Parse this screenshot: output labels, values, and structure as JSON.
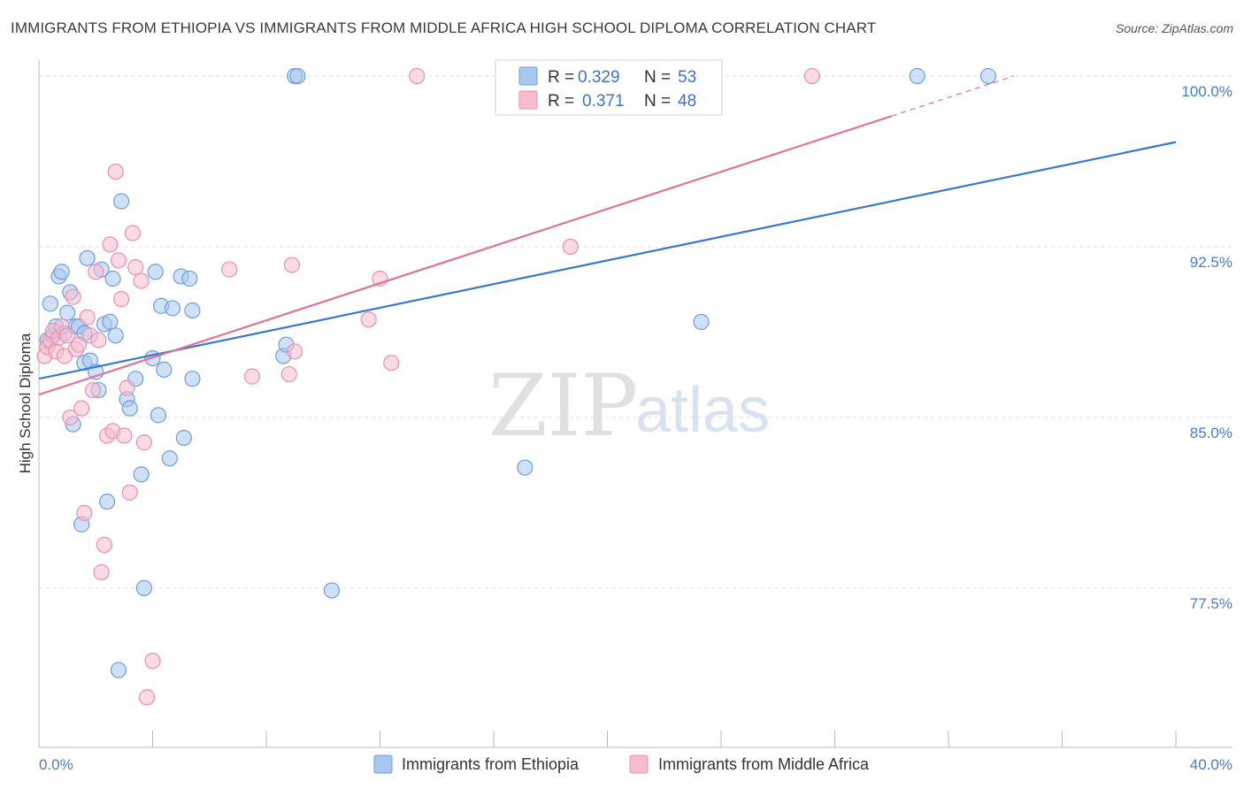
{
  "header": {
    "title": "IMMIGRANTS FROM ETHIOPIA VS IMMIGRANTS FROM MIDDLE AFRICA HIGH SCHOOL DIPLOMA CORRELATION CHART",
    "source": "Source: ZipAtlas.com"
  },
  "watermark": {
    "zip": "ZIP",
    "atlas": "atlas"
  },
  "colors": {
    "blue_fill": "#a9c8f0",
    "blue_stroke": "#6f9edb",
    "blue_line": "#3a78cf",
    "pink_fill": "#f6bcd0",
    "pink_stroke": "#e890ae",
    "pink_line": "#e0739a",
    "grid": "#dddddd",
    "tick_text": "#4a7cc9"
  },
  "legend": {
    "r_label": "R =",
    "n_label": "N =",
    "items": [
      {
        "series": "blue",
        "r": "0.329",
        "n": "53"
      },
      {
        "series": "pink",
        "r": "0.371",
        "n": "48"
      }
    ]
  },
  "chart_data": {
    "type": "scatter",
    "title": "IMMIGRANTS FROM ETHIOPIA VS IMMIGRANTS FROM MIDDLE AFRICA HIGH SCHOOL DIPLOMA CORRELATION CHART",
    "xlabel": "",
    "ylabel": "High School Diploma",
    "xlim": [
      0,
      40
    ],
    "ylim": [
      70.5,
      100.7
    ],
    "x_tick_labels": [
      "0.0%",
      "40.0%"
    ],
    "y_ticks": [
      {
        "value": 77.5,
        "label": "77.5%"
      },
      {
        "value": 85.0,
        "label": "85.0%"
      },
      {
        "value": 92.5,
        "label": "92.5%"
      },
      {
        "value": 100.0,
        "label": "100.0%"
      }
    ],
    "grid": "horizontal dashed",
    "series": [
      {
        "name": "Immigrants from Ethiopia",
        "color": "blue",
        "r": 0.329,
        "n": 53,
        "trend": {
          "x": [
            0,
            40
          ],
          "y": [
            86.7,
            97.1
          ],
          "dash_from_x": null
        },
        "points": [
          [
            0.3,
            88.4
          ],
          [
            0.4,
            90.0
          ],
          [
            0.5,
            88.6
          ],
          [
            0.6,
            89.0
          ],
          [
            0.7,
            91.2
          ],
          [
            0.8,
            91.4
          ],
          [
            0.9,
            88.7
          ],
          [
            1.0,
            89.6
          ],
          [
            1.1,
            90.5
          ],
          [
            1.2,
            84.7
          ],
          [
            1.3,
            89.0
          ],
          [
            1.4,
            89.0
          ],
          [
            1.5,
            80.3
          ],
          [
            1.6,
            88.7
          ],
          [
            1.6,
            87.4
          ],
          [
            1.7,
            92.0
          ],
          [
            1.8,
            87.5
          ],
          [
            2.0,
            87.0
          ],
          [
            2.1,
            86.2
          ],
          [
            2.2,
            91.5
          ],
          [
            2.3,
            89.1
          ],
          [
            2.4,
            81.3
          ],
          [
            2.5,
            89.2
          ],
          [
            2.6,
            91.1
          ],
          [
            2.7,
            88.6
          ],
          [
            2.8,
            73.9
          ],
          [
            2.9,
            94.5
          ],
          [
            3.1,
            85.8
          ],
          [
            3.2,
            85.4
          ],
          [
            3.4,
            86.7
          ],
          [
            3.6,
            82.5
          ],
          [
            3.7,
            77.5
          ],
          [
            4.0,
            87.6
          ],
          [
            4.1,
            91.4
          ],
          [
            4.2,
            85.1
          ],
          [
            4.3,
            89.9
          ],
          [
            4.4,
            87.1
          ],
          [
            4.6,
            83.2
          ],
          [
            4.7,
            89.8
          ],
          [
            5.0,
            91.2
          ],
          [
            5.1,
            84.1
          ],
          [
            5.3,
            91.1
          ],
          [
            5.4,
            86.7
          ],
          [
            5.4,
            89.7
          ],
          [
            8.6,
            87.7
          ],
          [
            8.7,
            88.2
          ],
          [
            9.0,
            100.0
          ],
          [
            9.1,
            100.0
          ],
          [
            10.3,
            77.4
          ],
          [
            17.1,
            82.8
          ],
          [
            23.3,
            89.2
          ],
          [
            30.9,
            100.0
          ],
          [
            33.4,
            100.0
          ]
        ]
      },
      {
        "name": "Immigrants from Middle Africa",
        "color": "pink",
        "r": 0.371,
        "n": 48,
        "trend": {
          "x": [
            0,
            34.3
          ],
          "y": [
            86.0,
            100.0
          ],
          "dash_from_x": 30.0
        },
        "points": [
          [
            0.2,
            87.7
          ],
          [
            0.3,
            88.1
          ],
          [
            0.4,
            88.4
          ],
          [
            0.5,
            88.8
          ],
          [
            0.6,
            87.9
          ],
          [
            0.7,
            88.5
          ],
          [
            0.8,
            89.0
          ],
          [
            0.9,
            87.7
          ],
          [
            1.0,
            88.6
          ],
          [
            1.1,
            85.0
          ],
          [
            1.2,
            90.3
          ],
          [
            1.3,
            88.0
          ],
          [
            1.4,
            88.2
          ],
          [
            1.5,
            85.4
          ],
          [
            1.6,
            80.8
          ],
          [
            1.7,
            89.4
          ],
          [
            1.8,
            88.6
          ],
          [
            1.9,
            86.2
          ],
          [
            2.0,
            91.4
          ],
          [
            2.1,
            88.4
          ],
          [
            2.2,
            78.2
          ],
          [
            2.3,
            79.4
          ],
          [
            2.4,
            84.2
          ],
          [
            2.5,
            92.6
          ],
          [
            2.6,
            84.4
          ],
          [
            2.7,
            95.8
          ],
          [
            2.8,
            91.9
          ],
          [
            2.9,
            90.2
          ],
          [
            3.0,
            84.2
          ],
          [
            3.1,
            86.3
          ],
          [
            3.2,
            81.7
          ],
          [
            3.3,
            93.1
          ],
          [
            3.4,
            91.6
          ],
          [
            3.6,
            91.0
          ],
          [
            3.7,
            83.9
          ],
          [
            3.8,
            72.7
          ],
          [
            4.0,
            74.3
          ],
          [
            6.7,
            91.5
          ],
          [
            7.5,
            86.8
          ],
          [
            8.8,
            86.9
          ],
          [
            8.9,
            91.7
          ],
          [
            9.0,
            87.9
          ],
          [
            11.6,
            89.3
          ],
          [
            12.0,
            91.1
          ],
          [
            12.4,
            87.4
          ],
          [
            13.3,
            100.0
          ],
          [
            18.7,
            92.5
          ],
          [
            27.2,
            100.0
          ]
        ]
      }
    ]
  },
  "bottom_legend": [
    {
      "series": "blue",
      "label": "Immigrants from Ethiopia"
    },
    {
      "series": "pink",
      "label": "Immigrants from Middle Africa"
    }
  ]
}
